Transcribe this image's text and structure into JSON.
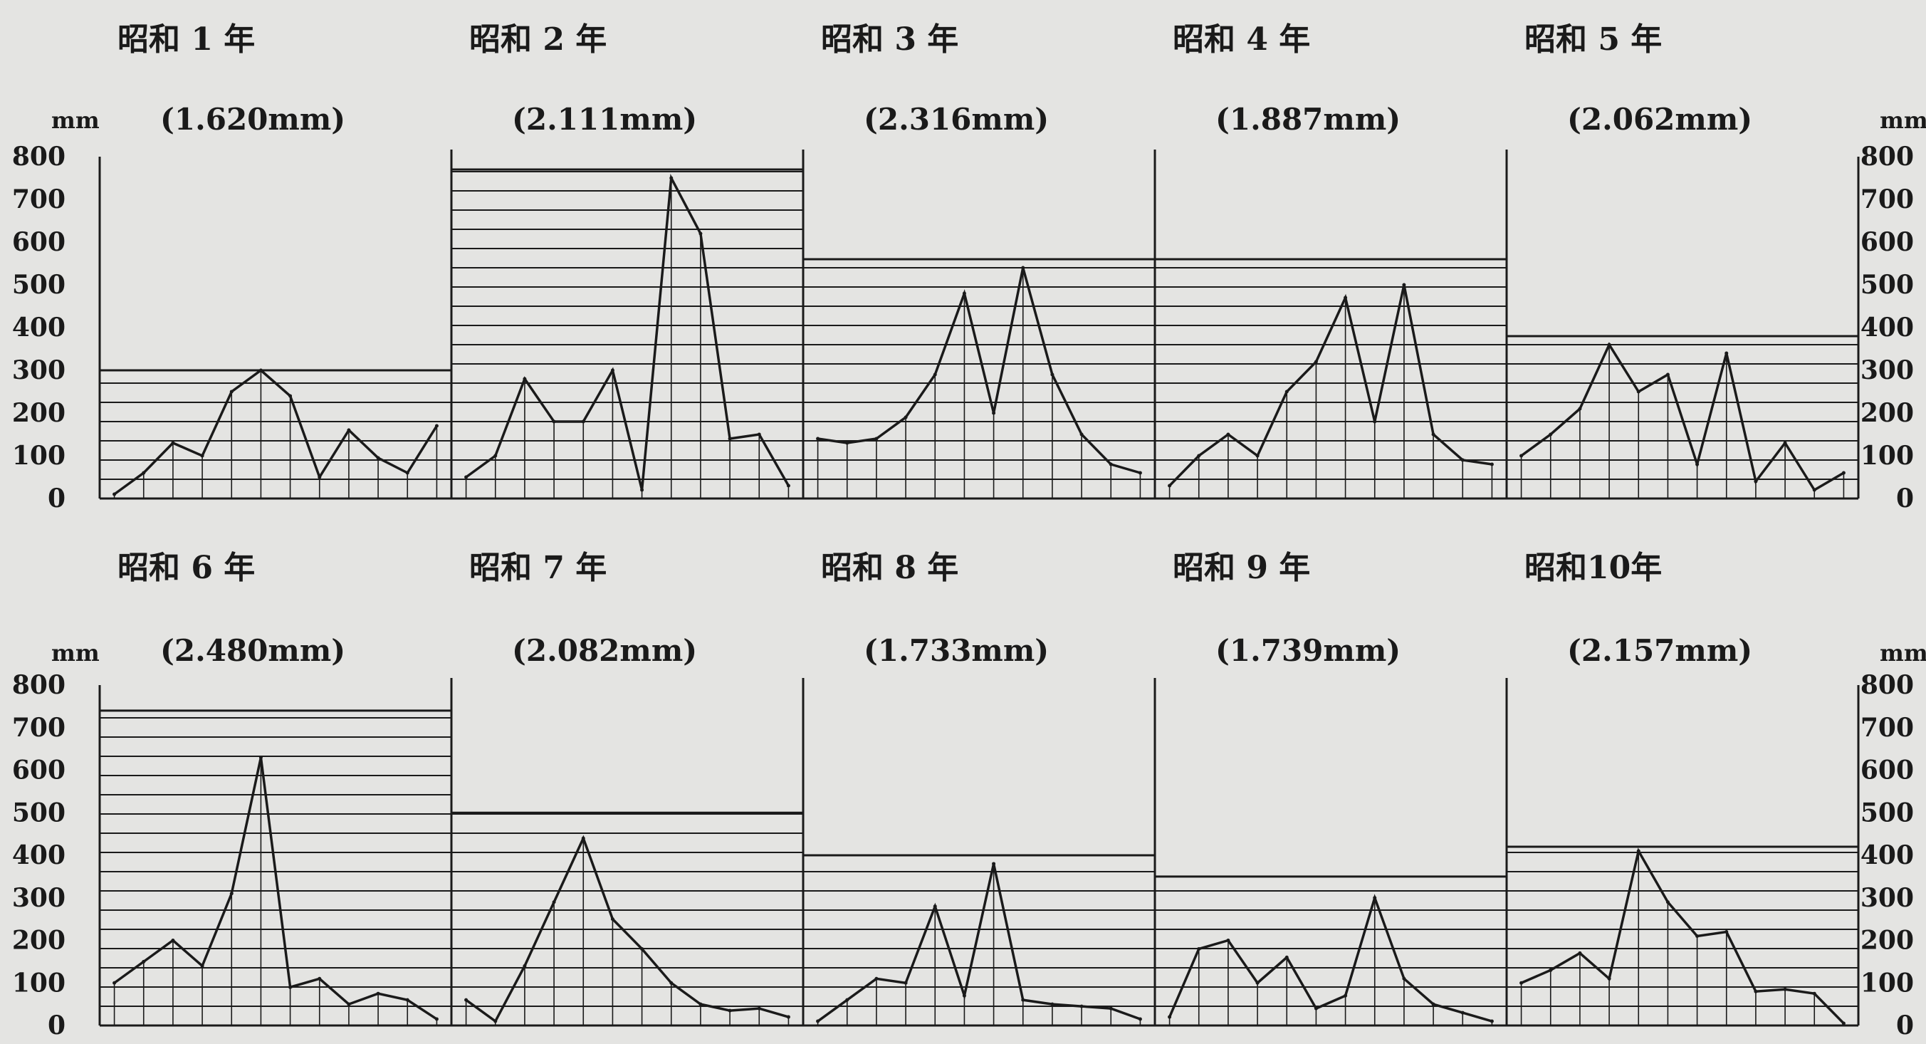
{
  "chart_data": {
    "type": "line",
    "y_unit": "mm",
    "y_ticks": [
      "0",
      "100",
      "200",
      "300",
      "400",
      "500",
      "600",
      "700",
      "800"
    ],
    "ylim": [
      0,
      800
    ],
    "grid": true,
    "rows": [
      {
        "years": [
          {
            "label": "昭和 1 年",
            "total": "(1.620mm)",
            "monthly_avg": 300,
            "values": [
              10,
              60,
              130,
              100,
              250,
              300,
              240,
              50,
              160,
              95,
              60,
              170
            ]
          },
          {
            "label": "昭和 2 年",
            "total": "(2.111mm)",
            "monthly_avg": 770,
            "values": [
              50,
              100,
              280,
              180,
              180,
              300,
              20,
              750,
              620,
              140,
              150,
              30
            ]
          },
          {
            "label": "昭和 3 年",
            "total": "(2.316mm)",
            "monthly_avg": 560,
            "values": [
              140,
              130,
              140,
              190,
              290,
              480,
              200,
              540,
              290,
              150,
              80,
              60
            ]
          },
          {
            "label": "昭和 4 年",
            "total": "(1.887mm)",
            "monthly_avg": 560,
            "values": [
              30,
              100,
              150,
              100,
              250,
              320,
              470,
              180,
              500,
              150,
              90,
              80
            ]
          },
          {
            "label": "昭和 5 年",
            "total": "(2.062mm)",
            "monthly_avg": 380,
            "values": [
              100,
              150,
              210,
              360,
              250,
              290,
              80,
              340,
              40,
              130,
              20,
              60
            ]
          }
        ]
      },
      {
        "years": [
          {
            "label": "昭和 6 年",
            "total": "(2.480mm)",
            "monthly_avg": 740,
            "values": [
              100,
              150,
              200,
              140,
              310,
              630,
              90,
              110,
              50,
              75,
              60,
              15
            ]
          },
          {
            "label": "昭和 7 年",
            "total": "(2.082mm)",
            "monthly_avg": 500,
            "values": [
              60,
              10,
              140,
              290,
              440,
              250,
              180,
              100,
              50,
              35,
              40,
              20
            ]
          },
          {
            "label": "昭和 8 年",
            "total": "(1.733mm)",
            "monthly_avg": 400,
            "values": [
              10,
              60,
              110,
              100,
              280,
              70,
              380,
              60,
              50,
              45,
              40,
              15
            ]
          },
          {
            "label": "昭和 9 年",
            "total": "(1.739mm)",
            "monthly_avg": 350,
            "values": [
              20,
              180,
              200,
              100,
              160,
              40,
              70,
              300,
              110,
              50,
              30,
              10
            ]
          },
          {
            "label": "昭和10年",
            "total": "(2.157mm)",
            "monthly_avg": 420,
            "values": [
              100,
              130,
              170,
              110,
              410,
              290,
              210,
              220,
              80,
              85,
              75,
              5
            ]
          }
        ]
      }
    ]
  }
}
